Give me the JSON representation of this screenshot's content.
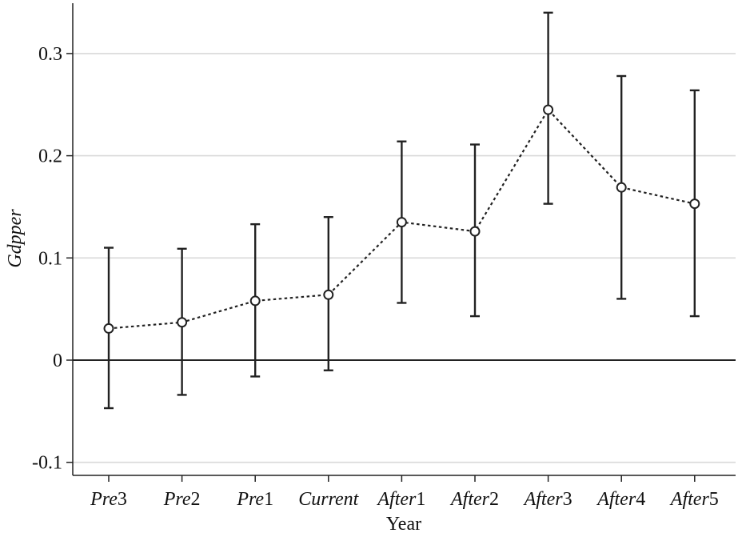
{
  "chart_data": {
    "type": "line",
    "title": "",
    "xlabel": "Year",
    "ylabel": "Gdpper",
    "ylim": [
      -0.115,
      0.35
    ],
    "yticks": [
      -0.1,
      0,
      0.1,
      0.2,
      0.3
    ],
    "ytick_labels": [
      "-0.1",
      "0",
      "0.1",
      "0.2",
      "0.3"
    ],
    "grid": true,
    "reference_line": 0,
    "categories": [
      {
        "italic": "Pre",
        "suffix": "3"
      },
      {
        "italic": "Pre",
        "suffix": "2"
      },
      {
        "italic": "Pre",
        "suffix": "1"
      },
      {
        "italic": "Current",
        "suffix": ""
      },
      {
        "italic": "After",
        "suffix": "1"
      },
      {
        "italic": "After",
        "suffix": "2"
      },
      {
        "italic": "After",
        "suffix": "3"
      },
      {
        "italic": "After",
        "suffix": "4"
      },
      {
        "italic": "After",
        "suffix": "5"
      }
    ],
    "series": [
      {
        "values": [
          0.031,
          0.037,
          0.058,
          0.064,
          0.135,
          0.126,
          0.245,
          0.169,
          0.153
        ],
        "ci_low": [
          -0.047,
          -0.034,
          -0.016,
          -0.01,
          0.056,
          0.043,
          0.153,
          0.06,
          0.043
        ],
        "ci_high": [
          0.11,
          0.109,
          0.133,
          0.14,
          0.214,
          0.211,
          0.34,
          0.278,
          0.264
        ],
        "line_style": "dotted",
        "marker": "hollow-circle",
        "color": "#222222"
      }
    ],
    "colors": {
      "grid": "#d9d9d9",
      "axis": "#222222",
      "series": "#222222"
    }
  }
}
